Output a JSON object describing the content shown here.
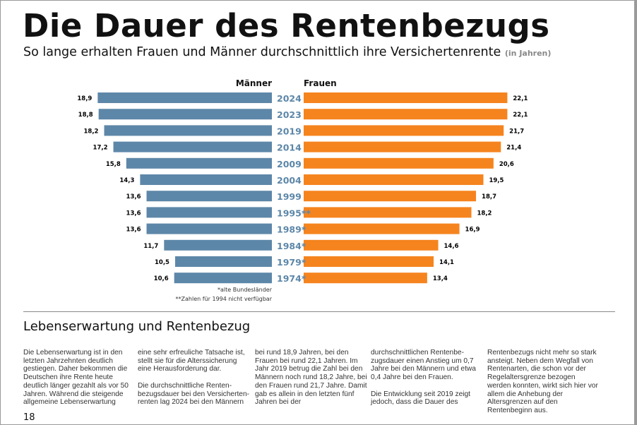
{
  "title": "Die Dauer des Rentenbezugs",
  "subtitle": "So lange erhalten Frauen und Männer durchschnittlich ihre Versichertenrente",
  "subtitle_unit": "(in Jahren)",
  "colors": {
    "men": "#5d87a8",
    "women": "#f5841f",
    "year_label": "#5d87a8"
  },
  "chart_data": {
    "type": "bar",
    "orientation": "horizontal-butterfly",
    "categories": [
      "2024",
      "2023",
      "2019",
      "2014",
      "2009",
      "2004",
      "1999",
      "1995**",
      "1989*",
      "1984*",
      "1979*",
      "1974*"
    ],
    "series": [
      {
        "name": "Männer",
        "values": [
          18.9,
          18.8,
          18.2,
          17.2,
          15.8,
          14.3,
          13.6,
          13.6,
          13.6,
          11.7,
          10.5,
          10.6
        ],
        "labels": [
          "18,9",
          "18,8",
          "18,2",
          "17,2",
          "15,8",
          "14,3",
          "13,6",
          "13,6",
          "13,6",
          "11,7",
          "10,5",
          "10,6"
        ]
      },
      {
        "name": "Frauen",
        "values": [
          22.1,
          22.1,
          21.7,
          21.4,
          20.6,
          19.5,
          18.7,
          18.2,
          16.9,
          14.6,
          14.1,
          13.4
        ],
        "labels": [
          "22,1",
          "22,1",
          "21,7",
          "21,4",
          "20,6",
          "19,5",
          "18,7",
          "18,2",
          "16,9",
          "14,6",
          "14,1",
          "13,4"
        ]
      }
    ]
  },
  "notes": [
    "*alte Bundesländer",
    "**Zahlen für 1994 nicht verfügbar"
  ],
  "section_title": "Lebenserwartung und Rentenbezug",
  "columns": [
    [
      "Die Lebenserwartung ist in den letzten Jahrzehnten deutlich gestiegen. Daher bekommen die Deutschen ihre Rente heute deutlich länger gezahlt als vor 50 Jahren. Während die steigende allgemeine Lebenserwartung"
    ],
    [
      "eine sehr erfreuliche Tatsache ist, stellt sie für die Alterssicherung eine Herausforderung dar.",
      "Die durchschnittliche Renten­bezugsdauer bei den Versicherten­renten lag 2024 bei den Männern"
    ],
    [
      "bei rund 18,9 Jahren, bei den Frauen bei rund 22,1 Jahren. Im Jahr 2019 betrug die Zahl bei den Männern noch rund 18,2 Jahre, bei den Frauen rund 21,7 Jahre. Damit gab es allein in den letzten fünf Jahren bei der"
    ],
    [
      "durchschnittlichen Rentenbe­zugsdauer einen Anstieg um 0,7 Jahre bei den Männern und etwa 0,4 Jahre bei den Frauen.",
      "Die Entwicklung seit 2019 zeigt jedoch, dass die Dauer des"
    ],
    [
      "Rentenbezugs nicht mehr so stark ansteigt. Neben dem Wegfall von Rentenarten, die schon vor der Regelaltersgrenze bezogen werden konnten, wirkt sich hier vor allem die Anhebung der Altersgrenzen auf den Rentenbeginn aus."
    ]
  ],
  "page_number": "18"
}
